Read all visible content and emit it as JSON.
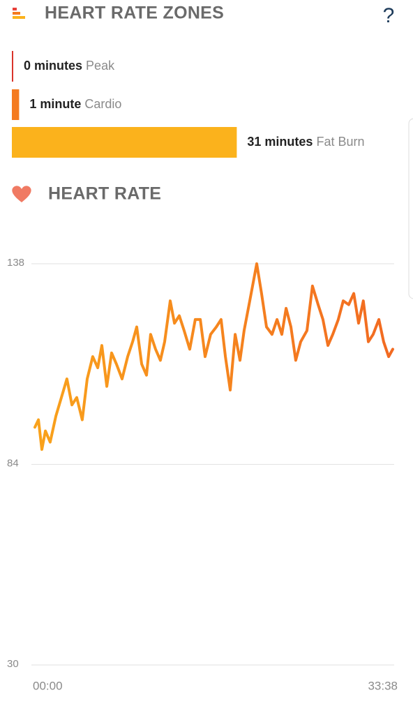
{
  "header": {
    "title": "HEART RATE ZONES",
    "help": "?"
  },
  "zones": [
    {
      "minutes": 0,
      "label": "0 minutes",
      "name": "Peak",
      "color": "#d9342b"
    },
    {
      "minutes": 1,
      "label": "1 minute",
      "name": "Cardio",
      "color": "#f47b20"
    },
    {
      "minutes": 31,
      "label": "31 minutes",
      "name": "Fat Burn",
      "color": "#fbb21c"
    }
  ],
  "chart_data": {
    "type": "line",
    "title": "HEART RATE",
    "xlim": [
      0,
      2018
    ],
    "xticks": [
      {
        "value": 0,
        "label": "00:00"
      },
      {
        "value": 2018,
        "label": "33:38"
      }
    ],
    "ylim": [
      30,
      138
    ],
    "yticks": [
      30,
      84,
      138
    ],
    "grid": true,
    "x": [
      0,
      20,
      39,
      59,
      86,
      118,
      149,
      180,
      208,
      235,
      266,
      294,
      325,
      353,
      376,
      404,
      431,
      458,
      490,
      521,
      549,
      572,
      600,
      627,
      650,
      678,
      705,
      729,
      760,
      784,
      811,
      838,
      870,
      901,
      929,
      956,
      987,
      1019,
      1046,
      1070,
      1097,
      1125,
      1152,
      1175,
      1207,
      1246,
      1273,
      1301,
      1332,
      1360,
      1387,
      1411,
      1438,
      1465,
      1493,
      1528,
      1559,
      1591,
      1618,
      1646,
      1673,
      1704,
      1732,
      1763,
      1791,
      1818,
      1845,
      1873,
      1900,
      1932,
      1959,
      1987,
      2010
    ],
    "series": [
      {
        "color": "#f47b20",
        "values": [
          94,
          96,
          88,
          93,
          90,
          97,
          102,
          107,
          100,
          102,
          96,
          107,
          113,
          110,
          116,
          105,
          114,
          111,
          107,
          113,
          117,
          121,
          111,
          108,
          119,
          115,
          112,
          117,
          128,
          122,
          124,
          120,
          115,
          123,
          123,
          113,
          119,
          121,
          123,
          113,
          104,
          119,
          112,
          120,
          128,
          138,
          130,
          121,
          119,
          123,
          119,
          126,
          121,
          112,
          117,
          120,
          132,
          127,
          123,
          116,
          119,
          123,
          128,
          127,
          130,
          122,
          128,
          117,
          119,
          123,
          117,
          113,
          115
        ]
      }
    ]
  }
}
